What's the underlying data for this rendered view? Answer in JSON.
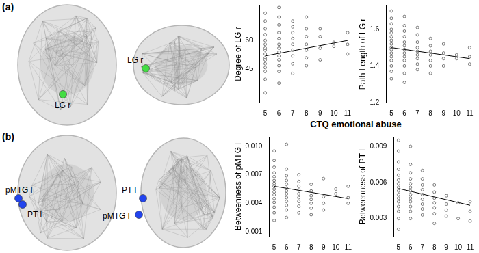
{
  "panels": [
    {
      "label": "(a)",
      "color": "#44dd44",
      "views": [
        {
          "nodes": [
            "LG r"
          ]
        },
        {
          "nodes": [
            "LG r"
          ]
        }
      ]
    },
    {
      "label": "(b)",
      "color": "#2244ee",
      "views": [
        {
          "nodes": [
            "pMTG l",
            "PT l"
          ]
        },
        {
          "nodes": [
            "PT l",
            "pMTG l"
          ]
        }
      ]
    }
  ],
  "x_label": "CTQ emotional abuse",
  "chart_data": [
    {
      "type": "scatter",
      "y_label": "Degree of LG r",
      "color": "#555555",
      "marker": "circle",
      "grid": false,
      "x": [
        5,
        5,
        5,
        5,
        5,
        5,
        5,
        5,
        5,
        5,
        5,
        5,
        5,
        5,
        5,
        5,
        6,
        6,
        6,
        6,
        6,
        6,
        6,
        6,
        6,
        6,
        6,
        6,
        6,
        7,
        7,
        7,
        7,
        7,
        7,
        7,
        7,
        7,
        8,
        8,
        8,
        8,
        8,
        8,
        8,
        9,
        9,
        9,
        9,
        10,
        10,
        11,
        11,
        11
      ],
      "values": [
        33,
        40,
        44,
        46,
        48,
        50,
        51,
        53,
        55,
        56,
        58,
        60,
        63,
        66,
        70,
        74,
        38,
        44,
        47,
        50,
        52,
        54,
        56,
        58,
        61,
        64,
        68,
        72,
        77,
        43,
        48,
        52,
        55,
        58,
        61,
        64,
        67,
        70,
        47,
        51,
        55,
        58,
        62,
        66,
        72,
        50,
        56,
        62,
        66,
        57,
        59,
        53,
        58,
        64
      ],
      "fit_line": {
        "x": [
          5,
          11
        ],
        "values": [
          52,
          60
        ],
        "color": "#000000"
      },
      "xlim": [
        4.6,
        11.4
      ],
      "xticks": [
        5,
        6,
        7,
        8,
        9,
        10,
        11
      ],
      "ylim": [
        28,
        78
      ],
      "yticks": [
        45,
        60
      ]
    },
    {
      "type": "scatter",
      "y_label": "Path Length of LG r",
      "color": "#555555",
      "marker": "circle",
      "grid": false,
      "x": [
        5,
        5,
        5,
        5,
        5,
        5,
        5,
        5,
        5,
        5,
        5,
        5,
        5,
        5,
        5,
        5,
        6,
        6,
        6,
        6,
        6,
        6,
        6,
        6,
        6,
        6,
        6,
        6,
        6,
        7,
        7,
        7,
        7,
        7,
        7,
        7,
        7,
        7,
        8,
        8,
        8,
        8,
        8,
        8,
        8,
        9,
        9,
        9,
        9,
        10,
        10,
        11,
        11,
        11
      ],
      "values": [
        1.33,
        1.37,
        1.4,
        1.43,
        1.45,
        1.47,
        1.49,
        1.5,
        1.52,
        1.54,
        1.56,
        1.58,
        1.6,
        1.63,
        1.66,
        1.7,
        1.31,
        1.36,
        1.4,
        1.43,
        1.45,
        1.47,
        1.49,
        1.51,
        1.53,
        1.56,
        1.59,
        1.62,
        1.67,
        1.38,
        1.41,
        1.44,
        1.46,
        1.48,
        1.5,
        1.53,
        1.57,
        1.61,
        1.36,
        1.4,
        1.43,
        1.46,
        1.48,
        1.51,
        1.55,
        1.4,
        1.44,
        1.47,
        1.52,
        1.44,
        1.46,
        1.41,
        1.45,
        1.5
      ],
      "fit_line": {
        "x": [
          5,
          11
        ],
        "values": [
          1.5,
          1.44
        ],
        "color": "#000000"
      },
      "xlim": [
        4.6,
        11.4
      ],
      "xticks": [
        5,
        6,
        7,
        8,
        9,
        10,
        11
      ],
      "ylim": [
        1.2,
        1.73
      ],
      "yticks": [
        1.2,
        1.4,
        1.6
      ]
    },
    {
      "type": "scatter",
      "y_label": "Betweenness of pMTG l",
      "color": "#555555",
      "marker": "circle",
      "grid": false,
      "x": [
        5,
        5,
        5,
        5,
        5,
        5,
        5,
        5,
        5,
        5,
        5,
        5,
        5,
        5,
        5,
        5,
        6,
        6,
        6,
        6,
        6,
        6,
        6,
        6,
        6,
        6,
        6,
        6,
        6,
        7,
        7,
        7,
        7,
        7,
        7,
        7,
        7,
        7,
        8,
        8,
        8,
        8,
        8,
        8,
        8,
        9,
        9,
        9,
        9,
        10,
        10,
        11,
        11,
        11
      ],
      "values": [
        0.0022,
        0.003,
        0.0036,
        0.0041,
        0.0045,
        0.0049,
        0.0052,
        0.0055,
        0.0058,
        0.0061,
        0.0064,
        0.0068,
        0.0072,
        0.0078,
        0.0085,
        0.0095,
        0.0025,
        0.0033,
        0.0038,
        0.0042,
        0.0046,
        0.005,
        0.0053,
        0.0056,
        0.006,
        0.0064,
        0.0069,
        0.0076,
        0.0102,
        0.003,
        0.0037,
        0.0042,
        0.0046,
        0.005,
        0.0054,
        0.0058,
        0.0063,
        0.007,
        0.0028,
        0.0035,
        0.004,
        0.0044,
        0.0048,
        0.0053,
        0.006,
        0.0033,
        0.004,
        0.0047,
        0.0066,
        0.005,
        0.0055,
        0.004,
        0.0046,
        0.0058
      ],
      "fit_line": {
        "x": [
          5,
          11
        ],
        "values": [
          0.0058,
          0.0045
        ],
        "color": "#000000"
      },
      "xlim": [
        4.6,
        11.4
      ],
      "xticks": [
        5,
        6,
        7,
        8,
        9,
        10,
        11
      ],
      "ylim": [
        0.0005,
        0.011
      ],
      "yticks": [
        0.001,
        0.004,
        0.007,
        {
          "value": 0.01,
          "label": "0.010"
        }
      ]
    },
    {
      "type": "scatter",
      "y_label": "Betweenness of PT l",
      "color": "#555555",
      "marker": "circle",
      "grid": false,
      "x": [
        5,
        5,
        5,
        5,
        5,
        5,
        5,
        5,
        5,
        5,
        5,
        5,
        5,
        5,
        5,
        5,
        6,
        6,
        6,
        6,
        6,
        6,
        6,
        6,
        6,
        6,
        6,
        6,
        6,
        7,
        7,
        7,
        7,
        7,
        7,
        7,
        7,
        7,
        8,
        8,
        8,
        8,
        8,
        8,
        8,
        9,
        9,
        9,
        9,
        10,
        10,
        11,
        11,
        11
      ],
      "values": [
        0.0021,
        0.003,
        0.0036,
        0.004,
        0.0044,
        0.0047,
        0.005,
        0.0053,
        0.0056,
        0.0059,
        0.0062,
        0.0066,
        0.0071,
        0.0077,
        0.0086,
        0.0095,
        0.003,
        0.0036,
        0.004,
        0.0044,
        0.0047,
        0.005,
        0.0053,
        0.0056,
        0.0059,
        0.0063,
        0.0068,
        0.0075,
        0.009,
        0.0033,
        0.0038,
        0.0042,
        0.0046,
        0.005,
        0.0054,
        0.0058,
        0.0063,
        0.007,
        0.0026,
        0.0034,
        0.0039,
        0.0043,
        0.0047,
        0.0052,
        0.0058,
        0.0032,
        0.0037,
        0.0042,
        0.0049,
        0.003,
        0.0043,
        0.0028,
        0.0036,
        0.0044
      ],
      "fit_line": {
        "x": [
          5,
          11
        ],
        "values": [
          0.0055,
          0.0041
        ],
        "color": "#000000"
      },
      "xlim": [
        4.6,
        11.4
      ],
      "xticks": [
        5,
        6,
        7,
        8,
        9,
        10,
        11
      ],
      "ylim": [
        0.0015,
        0.0098
      ],
      "yticks": [
        0.003,
        0.006,
        0.009
      ]
    }
  ]
}
